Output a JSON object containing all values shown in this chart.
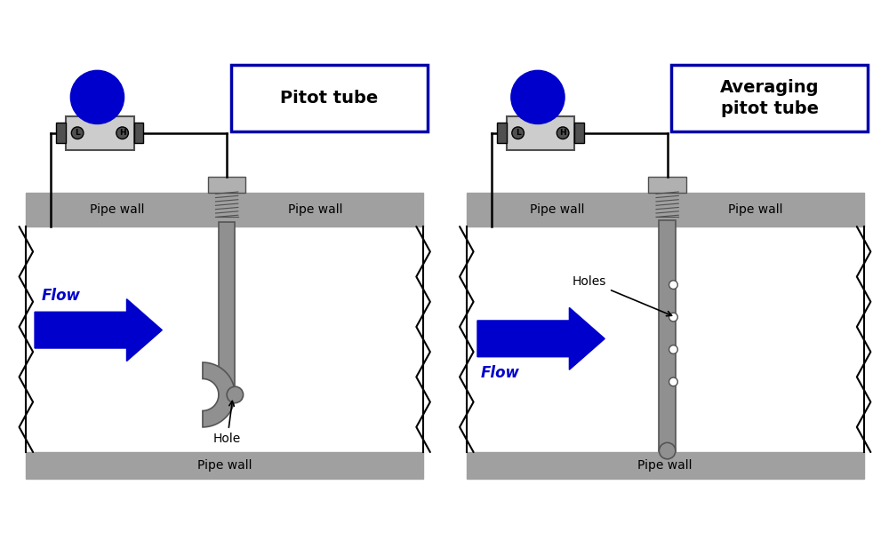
{
  "bg": "#ffffff",
  "pipe_gray": "#a0a0a0",
  "tube_gray": "#909090",
  "tube_edge": "#555555",
  "dark_gray": "#505050",
  "blue": "#0000cc",
  "black": "#000000",
  "white": "#ffffff",
  "light_gray": "#cccccc",
  "title1": "Pitot tube",
  "title2": "Averaging\npitot tube",
  "flow": "Flow",
  "hole": "Hole",
  "holes": "Holes",
  "pipe_wall": "Pipe wall",
  "title_box_color": "#0000aa",
  "fitting_gray": "#b0b0b0"
}
